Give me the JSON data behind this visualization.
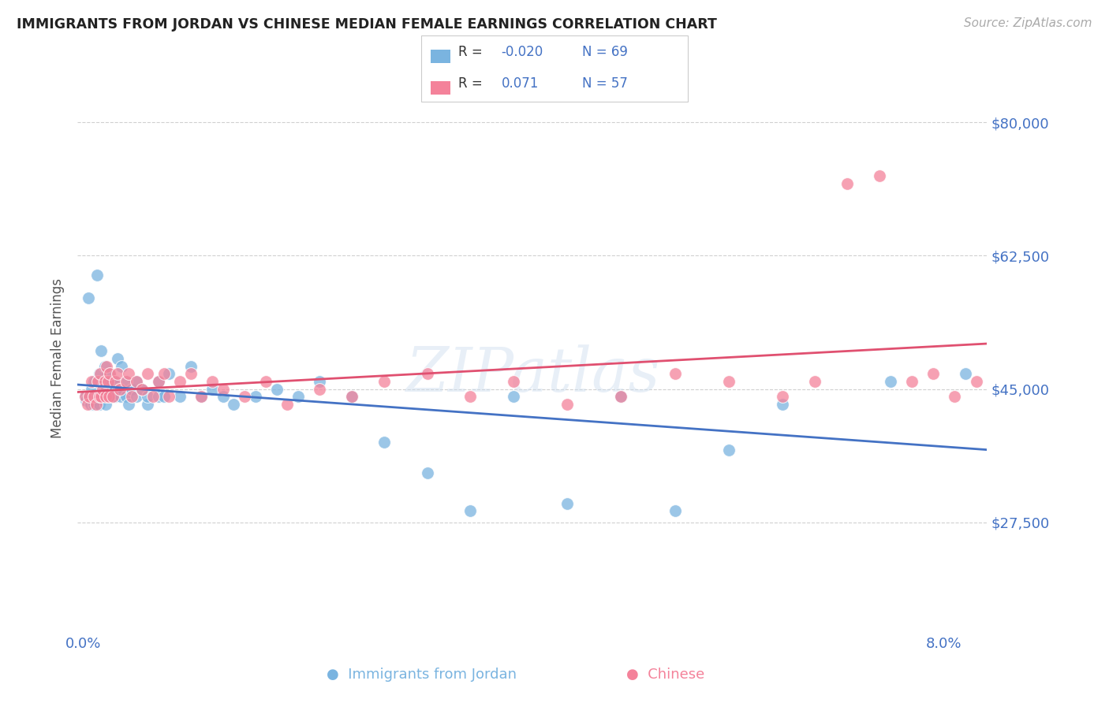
{
  "title": "IMMIGRANTS FROM JORDAN VS CHINESE MEDIAN FEMALE EARNINGS CORRELATION CHART",
  "source": "Source: ZipAtlas.com",
  "ylabel": "Median Female Earnings",
  "jordan_color": "#7ab4e0",
  "chinese_color": "#f4829a",
  "jordan_line_color": "#4472c4",
  "chinese_line_color": "#e05070",
  "axis_label_color": "#4472c4",
  "ytick_labels": [
    "$80,000",
    "$62,500",
    "$45,000",
    "$27,500"
  ],
  "ytick_values": [
    80000,
    62500,
    45000,
    27500
  ],
  "ymin": 13000,
  "ymax": 85000,
  "xmin": -0.0005,
  "xmax": 0.084,
  "background_color": "#ffffff",
  "watermark": "ZIPatlas",
  "jordan_R": -0.02,
  "jordan_N": 69,
  "chinese_R": 0.071,
  "chinese_N": 57,
  "jordan_x": [
    0.0002,
    0.0003,
    0.0005,
    0.0006,
    0.0007,
    0.0008,
    0.0009,
    0.001,
    0.001,
    0.0012,
    0.0013,
    0.0014,
    0.0015,
    0.0015,
    0.0016,
    0.0017,
    0.0018,
    0.0019,
    0.002,
    0.002,
    0.0021,
    0.0022,
    0.0023,
    0.0024,
    0.0025,
    0.0026,
    0.0027,
    0.0028,
    0.003,
    0.003,
    0.0032,
    0.0033,
    0.0035,
    0.0036,
    0.004,
    0.004,
    0.0042,
    0.0045,
    0.005,
    0.005,
    0.0055,
    0.006,
    0.006,
    0.007,
    0.007,
    0.0075,
    0.008,
    0.009,
    0.01,
    0.011,
    0.012,
    0.013,
    0.014,
    0.016,
    0.018,
    0.02,
    0.022,
    0.025,
    0.028,
    0.032,
    0.036,
    0.04,
    0.045,
    0.05,
    0.055,
    0.06,
    0.065,
    0.075,
    0.082
  ],
  "jordan_y": [
    44000,
    43500,
    57000,
    44000,
    43000,
    45000,
    44000,
    46000,
    43000,
    44000,
    60000,
    44000,
    47000,
    43000,
    44000,
    50000,
    44000,
    46000,
    44000,
    48000,
    43000,
    45000,
    44000,
    46000,
    47000,
    44000,
    46000,
    45000,
    44000,
    46000,
    49000,
    45000,
    44000,
    48000,
    44000,
    46000,
    43000,
    45000,
    46000,
    44000,
    45000,
    43000,
    44000,
    44000,
    46000,
    44000,
    47000,
    44000,
    48000,
    44000,
    45000,
    44000,
    43000,
    44000,
    45000,
    44000,
    46000,
    44000,
    38000,
    34000,
    29000,
    44000,
    30000,
    44000,
    29000,
    37000,
    43000,
    46000,
    47000
  ],
  "chinese_x": [
    0.0002,
    0.0004,
    0.0006,
    0.0008,
    0.001,
    0.0012,
    0.0014,
    0.0015,
    0.0016,
    0.0017,
    0.0018,
    0.002,
    0.0021,
    0.0022,
    0.0023,
    0.0024,
    0.0025,
    0.0028,
    0.003,
    0.0032,
    0.0034,
    0.004,
    0.0042,
    0.0045,
    0.005,
    0.0055,
    0.006,
    0.0065,
    0.007,
    0.0075,
    0.008,
    0.009,
    0.01,
    0.011,
    0.012,
    0.013,
    0.015,
    0.017,
    0.019,
    0.022,
    0.025,
    0.028,
    0.032,
    0.036,
    0.04,
    0.045,
    0.05,
    0.055,
    0.06,
    0.065,
    0.068,
    0.071,
    0.074,
    0.077,
    0.079,
    0.081,
    0.083
  ],
  "chinese_y": [
    44000,
    43000,
    44000,
    46000,
    44000,
    43000,
    46000,
    44000,
    47000,
    44000,
    45000,
    46000,
    44000,
    48000,
    46000,
    44000,
    47000,
    44000,
    46000,
    47000,
    45000,
    46000,
    47000,
    44000,
    46000,
    45000,
    47000,
    44000,
    46000,
    47000,
    44000,
    46000,
    47000,
    44000,
    46000,
    45000,
    44000,
    46000,
    43000,
    45000,
    44000,
    46000,
    47000,
    44000,
    46000,
    43000,
    44000,
    47000,
    46000,
    44000,
    46000,
    72000,
    73000,
    46000,
    47000,
    44000,
    46000
  ]
}
